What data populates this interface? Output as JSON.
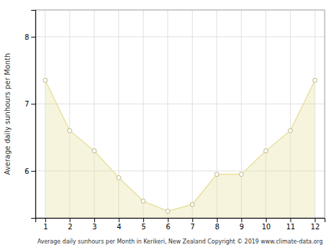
{
  "chart_data": {
    "type": "area",
    "x": [
      1,
      2,
      3,
      4,
      5,
      6,
      7,
      8,
      9,
      10,
      11,
      12
    ],
    "values": [
      7.35,
      6.6,
      6.3,
      5.9,
      5.55,
      5.4,
      5.5,
      5.95,
      5.95,
      6.3,
      6.6,
      7.35
    ],
    "xlabel": "Average daily sunhours per Month in Kerikeri, New Zealand Copyright © 2019 www.climate-data.org",
    "ylabel": "Average daily sunhours per Month",
    "xlim": [
      0.6,
      12.4
    ],
    "ylim": [
      5.3,
      8.4
    ],
    "xticks": [
      1,
      2,
      3,
      4,
      5,
      6,
      7,
      8,
      9,
      10,
      11,
      12
    ],
    "yticks": [
      6,
      7,
      8
    ],
    "color": "#E8E0A0",
    "marker": "circle",
    "grid": true
  }
}
